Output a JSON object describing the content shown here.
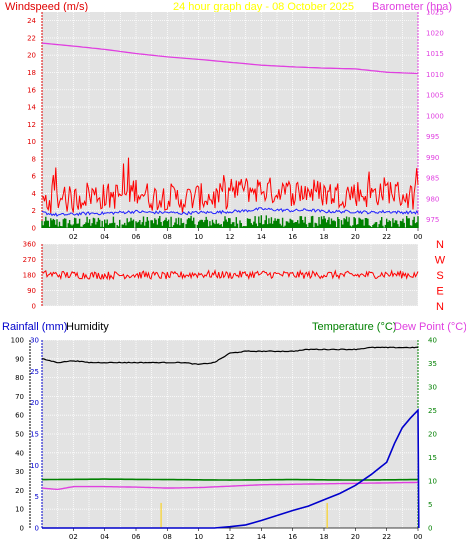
{
  "header": {
    "left_title": "Windspeed (m/s)",
    "center_title": "24 hour graph day - 08 October 2025",
    "right_title": "Barometer (hpa)"
  },
  "colors": {
    "wind_axis": "#e00000",
    "title_center": "#ffff00",
    "baro": "#e040e0",
    "gust": "#ff0000",
    "wind_avg": "#2020ff",
    "wind_low": "#008000",
    "direction": "#ff0000",
    "rain": "#0000cc",
    "humidity": "#000000",
    "temperature": "#008000",
    "dewpoint": "#e040e0",
    "uv_marks": "#ffd000",
    "plot_bg": "#e3e3e3"
  },
  "chart_data": [
    {
      "type": "line",
      "name": "wind-barometer",
      "x_ticks": [
        "02",
        "04",
        "06",
        "08",
        "10",
        "12",
        "14",
        "16",
        "18",
        "20",
        "22",
        "00"
      ],
      "y_left_ticks": [
        "0",
        "2",
        "4",
        "6",
        "8",
        "10",
        "12",
        "14",
        "16",
        "18",
        "20",
        "22",
        "24"
      ],
      "y_left_range": [
        0,
        25
      ],
      "y_right_ticks": [
        "975",
        "980",
        "985",
        "990",
        "995",
        "1000",
        "1005",
        "1010",
        "1015",
        "1020",
        "1025"
      ],
      "y_right_range": [
        973,
        1025
      ],
      "xlabel": "",
      "ylabel_left": "Windspeed (m/s)",
      "ylabel_right": "Barometer (hpa)",
      "series": [
        {
          "name": "Barometer",
          "axis": "right",
          "x": [
            0,
            2,
            4,
            6,
            8,
            10,
            12,
            14,
            16,
            18,
            20,
            22,
            24
          ],
          "values": [
            1017.5,
            1016.8,
            1016.0,
            1015.0,
            1014.2,
            1013.6,
            1012.9,
            1012.2,
            1011.8,
            1011.5,
            1011.3,
            1010.5,
            1010.2
          ]
        },
        {
          "name": "Gust",
          "axis": "left",
          "x": [
            0,
            1,
            2,
            3,
            4,
            5,
            6,
            7,
            8,
            9,
            10,
            11,
            12,
            13,
            14,
            15,
            16,
            17,
            18,
            19,
            20,
            21,
            22,
            23,
            24
          ],
          "values": [
            3.0,
            3.5,
            3.2,
            4.0,
            3.6,
            3.8,
            4.5,
            3.5,
            3.7,
            3.3,
            3.6,
            3.5,
            3.8,
            4.4,
            4.5,
            4.2,
            4.1,
            4.3,
            4.0,
            3.9,
            4.1,
            3.8,
            4.5,
            3.8,
            3.5
          ]
        },
        {
          "name": "Average",
          "axis": "left",
          "x": [
            0,
            1,
            2,
            3,
            4,
            5,
            6,
            7,
            8,
            9,
            10,
            11,
            12,
            13,
            14,
            15,
            16,
            17,
            18,
            19,
            20,
            21,
            22,
            23,
            24
          ],
          "values": [
            1.8,
            1.5,
            1.6,
            1.7,
            1.7,
            1.8,
            1.9,
            1.8,
            1.8,
            1.7,
            1.8,
            1.8,
            1.9,
            2.0,
            2.2,
            2.1,
            2.0,
            2.1,
            1.9,
            1.9,
            1.9,
            1.8,
            1.9,
            1.8,
            1.8
          ]
        },
        {
          "name": "Low",
          "axis": "left",
          "x": [
            0,
            2,
            4,
            6,
            8,
            10,
            12,
            14,
            16,
            18,
            20,
            22,
            24
          ],
          "values": [
            0.6,
            0.6,
            0.7,
            0.7,
            0.7,
            0.7,
            0.7,
            0.8,
            0.8,
            0.7,
            0.7,
            0.7,
            0.7
          ]
        }
      ]
    },
    {
      "type": "line",
      "name": "wind-direction",
      "y_ticks": [
        "360",
        "270",
        "180",
        "90",
        "0"
      ],
      "y_range": [
        0,
        360
      ],
      "compass": [
        "N",
        "W",
        "S",
        "E",
        "N"
      ],
      "series": [
        {
          "name": "Direction",
          "x": [
            0,
            2,
            4,
            6,
            8,
            10,
            12,
            14,
            16,
            18,
            20,
            22,
            24
          ],
          "values": [
            185,
            180,
            178,
            182,
            175,
            185,
            180,
            185,
            180,
            182,
            178,
            185,
            180
          ]
        }
      ]
    },
    {
      "type": "line",
      "name": "rain-humidity-temp",
      "left_label_rain": "Rainfall (mm)",
      "left_label_humidity": "Humidity",
      "right_label_temp": "Temperature (°C)",
      "right_label_dew": "Dew Point (°C)",
      "y_humidity_ticks": [
        "0",
        "10",
        "20",
        "30",
        "40",
        "50",
        "60",
        "70",
        "80",
        "90",
        "100"
      ],
      "y_humidity_range": [
        0,
        100
      ],
      "y_rain_ticks": [
        "0",
        "5",
        "10",
        "15",
        "20",
        "25",
        "30"
      ],
      "y_rain_range": [
        0,
        30
      ],
      "y_temp_ticks": [
        "0",
        "5",
        "10",
        "15",
        "20",
        "25",
        "30",
        "35",
        "40"
      ],
      "y_temp_range": [
        0,
        40
      ],
      "series": [
        {
          "name": "Humidity",
          "axis": "humidity",
          "x": [
            0,
            1,
            2,
            3,
            4,
            5,
            6,
            7,
            8,
            9,
            10,
            11,
            12,
            13,
            14,
            15,
            16,
            17,
            18,
            19,
            20,
            21,
            22,
            23,
            24
          ],
          "values": [
            90,
            88,
            89,
            88,
            88,
            88,
            88,
            88,
            88,
            88,
            87,
            88,
            93,
            94,
            94,
            94,
            94,
            95,
            95,
            95,
            95,
            96,
            96,
            96,
            96
          ]
        },
        {
          "name": "Temperature",
          "axis": "temp",
          "x": [
            0,
            4,
            8,
            12,
            16,
            20,
            24
          ],
          "values": [
            10.3,
            10.4,
            10.3,
            10.2,
            10.3,
            10.2,
            10.3
          ]
        },
        {
          "name": "Dew Point",
          "axis": "temp",
          "x": [
            0,
            1,
            2,
            4,
            6,
            8,
            10,
            12,
            14,
            16,
            18,
            20,
            22,
            24
          ],
          "values": [
            8.5,
            8.2,
            8.8,
            8.8,
            8.7,
            8.5,
            8.6,
            8.9,
            9.2,
            9.3,
            9.4,
            9.5,
            9.6,
            9.7
          ]
        },
        {
          "name": "Rainfall",
          "axis": "rain",
          "x": [
            0,
            4,
            8,
            11,
            12,
            13,
            14,
            15,
            16,
            17,
            18,
            19,
            20,
            21,
            22,
            22.5,
            23,
            23.5,
            24,
            24.05
          ],
          "values": [
            0,
            0,
            0,
            0,
            0.2,
            0.5,
            1.2,
            2.0,
            2.8,
            3.5,
            4.5,
            5.5,
            6.8,
            8.5,
            10.5,
            13.5,
            16.0,
            17.5,
            18.8,
            0
          ]
        }
      ]
    }
  ]
}
